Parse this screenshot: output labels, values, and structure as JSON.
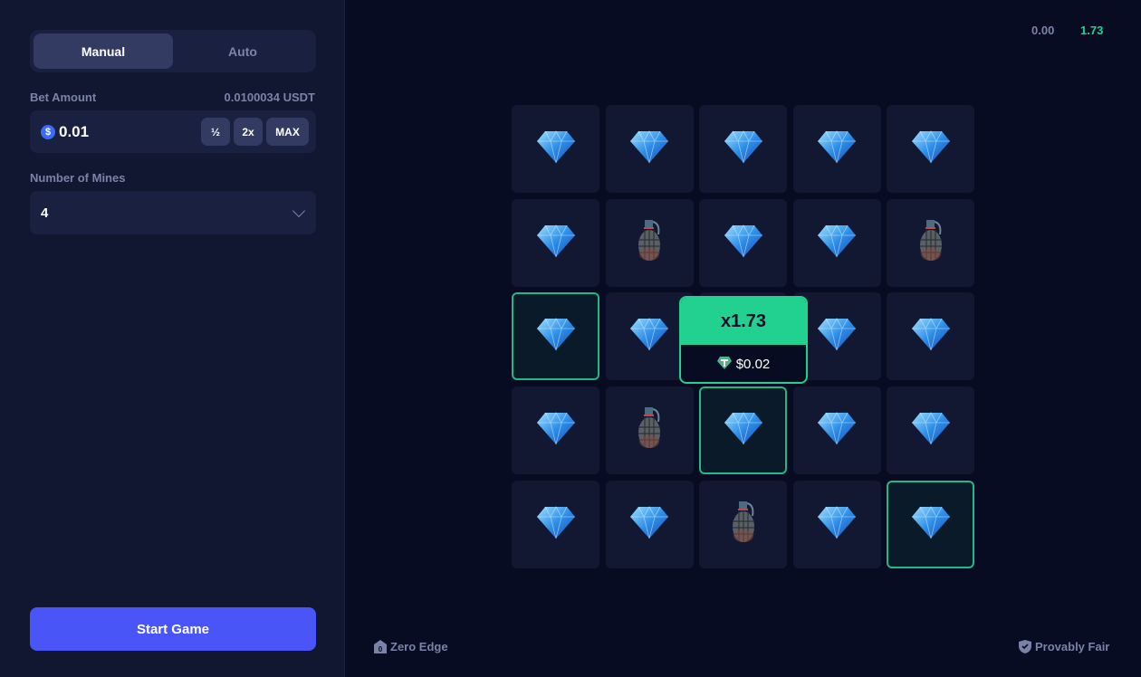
{
  "tabs": [
    {
      "label": "Manual",
      "active": true
    },
    {
      "label": "Auto",
      "active": false
    }
  ],
  "bet": {
    "label": "Bet Amount",
    "balance": "0.0100034 USDT",
    "value": "0.01",
    "currency_icon": "dollar-coin-icon",
    "half": "½",
    "double": "2x",
    "max": "MAX"
  },
  "mines": {
    "label": "Number of Mines",
    "value": "4"
  },
  "start_label": "Start Game",
  "top": {
    "left_value": "0.00",
    "right_value": "1.73"
  },
  "grid": [
    [
      "gem",
      "gem",
      "gem",
      "gem",
      "gem"
    ],
    [
      "gem",
      "mine",
      "gem",
      "gem",
      "mine"
    ],
    [
      "gem-picked",
      "gem",
      "gem",
      "gem",
      "gem"
    ],
    [
      "gem",
      "mine",
      "gem-picked",
      "gem",
      "gem"
    ],
    [
      "gem",
      "gem",
      "mine",
      "gem",
      "gem-picked"
    ]
  ],
  "payout": {
    "multiplier": "x1.73",
    "amount": "$0.02",
    "icon": "tether-icon"
  },
  "footer": {
    "left": "Zero Edge",
    "right": "Provably Fair"
  },
  "colors": {
    "accent": "#4a55f8",
    "win": "#22d08f"
  }
}
